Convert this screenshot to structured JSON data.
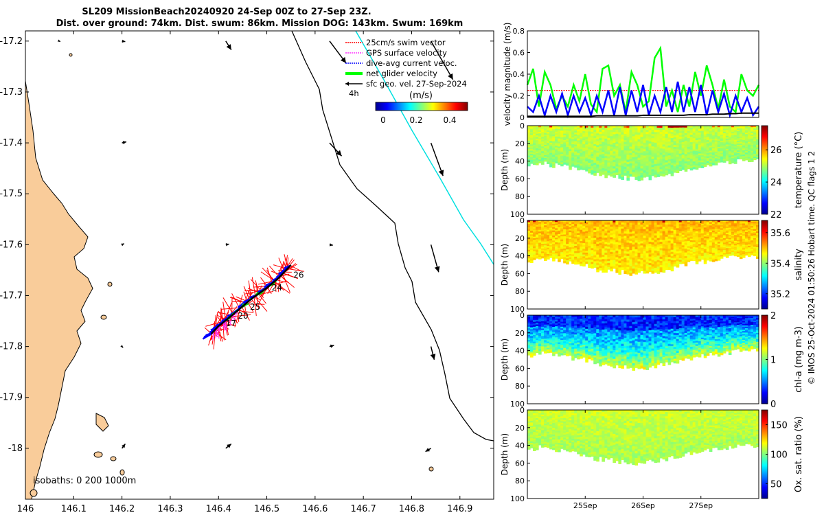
{
  "title": {
    "line1": "SL209 MissionBeach20240920 24-Sep 00Z to 27-Sep 23Z.",
    "line2": "Dist. over ground: 74km. Dist. swum: 86km. Mission DOG: 143km. Swum: 169km"
  },
  "colors": {
    "land": "#f9cc9a",
    "swim_vector": "#ff0000",
    "gps_velocity": "#ff33ff",
    "dive_avg": "#0000ff",
    "net_glider": "#00ff00",
    "sfc_geo": "#000000",
    "isobath_200": "#000000",
    "isobath_1000": "#00e0e0"
  },
  "credit": "© IMOS 25-Oct-2024 01:50:26 Hobart time. QC flags 1  2",
  "chart_data": [
    {
      "id": "map",
      "type": "scatter",
      "title": "Glider track and velocity vectors",
      "xlabel": "",
      "ylabel": "",
      "xlim": [
        146.0,
        146.97
      ],
      "ylim": [
        -18.1,
        -17.18
      ],
      "xticks": [
        146,
        146.1,
        146.2,
        146.3,
        146.4,
        146.5,
        146.6,
        146.7,
        146.8,
        146.9
      ],
      "xtick_labels": [
        "146",
        "146.1",
        "146.2",
        "146.3",
        "146.4",
        "146.5",
        "146.6",
        "146.7",
        "146.8",
        "146.9"
      ],
      "yticks": [
        -17.2,
        -17.3,
        -17.4,
        -17.5,
        -17.6,
        -17.7,
        -17.8,
        -17.9,
        -18.0
      ],
      "ytick_labels": [
        "-17.2",
        "-17.3",
        "-17.4",
        "-17.5",
        "-17.6",
        "-17.7",
        "-17.8",
        "-17.9",
        "-18"
      ],
      "legend": {
        "placement": "top-right",
        "entries": [
          {
            "label": "25cm/s swim vector",
            "color": "#ff0000",
            "style": "dotted"
          },
          {
            "label": "GPS surface velocity",
            "color": "#ff33ff",
            "style": "dotted"
          },
          {
            "label": "dive-avg current veloc.",
            "color": "#0000ff",
            "style": "dotted"
          },
          {
            "label": "net glider velocity",
            "color": "#00ff00",
            "style": "thick"
          },
          {
            "label": "sfc geo. vel. 27-Sep-2024",
            "color": "#000000",
            "style": "solid"
          }
        ],
        "time_step_label": "4h"
      },
      "colorbar": {
        "label": "(m/s)",
        "ticks": [
          "0",
          "0.2",
          "0.4"
        ],
        "range": [
          0,
          0.5
        ]
      },
      "isobath_label": "isobaths: 0   200  1000m",
      "track": {
        "lon": [
          146.385,
          146.4,
          146.42,
          146.445,
          146.47,
          146.5,
          146.525,
          146.55
        ],
        "lat": [
          -17.775,
          -17.76,
          -17.745,
          -17.725,
          -17.705,
          -17.685,
          -17.665,
          -17.64
        ]
      },
      "day_labels": [
        {
          "text": "26",
          "lon": 146.555,
          "lat": -17.665
        },
        {
          "text": "24",
          "lon": 146.51,
          "lat": -17.69
        },
        {
          "text": "25",
          "lon": 146.465,
          "lat": -17.728
        },
        {
          "text": "20",
          "lon": 146.44,
          "lat": -17.745
        },
        {
          "text": "17",
          "lon": 146.415,
          "lat": -17.76
        }
      ],
      "geo_vectors": [
        {
          "lon": 146.07,
          "lat": -17.2,
          "u": 0.01,
          "v": -0.005
        },
        {
          "lon": 146.2,
          "lat": -17.2,
          "u": 0.03,
          "v": -0.005
        },
        {
          "lon": 146.415,
          "lat": -17.2,
          "u": 0.05,
          "v": -0.08
        },
        {
          "lon": 146.63,
          "lat": -17.2,
          "u": 0.15,
          "v": -0.2
        },
        {
          "lon": 146.84,
          "lat": -17.2,
          "u": 0.2,
          "v": -0.35
        },
        {
          "lon": 146.2,
          "lat": -17.4,
          "u": 0.04,
          "v": 0.01
        },
        {
          "lon": 146.63,
          "lat": -17.4,
          "u": 0.11,
          "v": -0.12
        },
        {
          "lon": 146.84,
          "lat": -17.4,
          "u": 0.11,
          "v": -0.3
        },
        {
          "lon": 146.2,
          "lat": -17.6,
          "u": 0.02,
          "v": 0.01
        },
        {
          "lon": 146.415,
          "lat": -17.6,
          "u": 0.03,
          "v": 0.005
        },
        {
          "lon": 146.63,
          "lat": -17.6,
          "u": 0.03,
          "v": -0.005
        },
        {
          "lon": 146.84,
          "lat": -17.6,
          "u": 0.07,
          "v": -0.25
        },
        {
          "lon": 146.2,
          "lat": -17.8,
          "u": 0.01,
          "v": -0.01
        },
        {
          "lon": 146.63,
          "lat": -17.8,
          "u": 0.04,
          "v": 0.01
        },
        {
          "lon": 146.84,
          "lat": -17.8,
          "u": 0.03,
          "v": -0.12
        },
        {
          "lon": 146.2,
          "lat": -18.0,
          "u": 0.03,
          "v": 0.04
        },
        {
          "lon": 146.415,
          "lat": -18.0,
          "u": 0.05,
          "v": 0.04
        },
        {
          "lon": 146.84,
          "lat": -18.0,
          "u": -0.05,
          "v": -0.03
        }
      ]
    },
    {
      "id": "velocity",
      "type": "line",
      "title": "",
      "xlabel": "",
      "ylabel": "velocity magnitude (m/s)",
      "xlim": [
        0,
        4
      ],
      "ylim": [
        0,
        0.8
      ],
      "yticks": [
        0,
        0.2,
        0.4,
        0.6,
        0.8
      ],
      "ytick_labels": [
        "0",
        "0.2",
        "0.4",
        "0.6",
        "0.8"
      ],
      "x": [
        0,
        0.1,
        0.2,
        0.3,
        0.4,
        0.5,
        0.6,
        0.7,
        0.8,
        0.9,
        1.0,
        1.1,
        1.2,
        1.3,
        1.4,
        1.5,
        1.6,
        1.7,
        1.8,
        1.9,
        2.0,
        2.1,
        2.2,
        2.3,
        2.4,
        2.5,
        2.6,
        2.7,
        2.8,
        2.9,
        3.0,
        3.1,
        3.2,
        3.3,
        3.4,
        3.5,
        3.6,
        3.7,
        3.8,
        3.9,
        4.0
      ],
      "series": [
        {
          "name": "swim speed",
          "color": "#ff0000",
          "style": "dotted",
          "values": [
            0.25,
            0.25,
            0.25,
            0.25,
            0.25,
            0.25,
            0.25,
            0.25,
            0.25,
            0.25,
            0.25,
            0.25,
            0.25,
            0.25,
            0.25,
            0.25,
            0.25,
            0.25,
            0.25,
            0.25,
            0.25,
            0.25,
            0.25,
            0.25,
            0.25,
            0.25,
            0.25,
            0.25,
            0.25,
            0.25,
            0.25,
            0.25,
            0.25,
            0.25,
            0.25,
            0.25,
            0.25,
            0.25,
            0.25,
            0.25,
            0.25
          ]
        },
        {
          "name": "net glider velocity",
          "color": "#00ff00",
          "style": "solid",
          "values": [
            0.3,
            0.45,
            0.1,
            0.42,
            0.3,
            0.08,
            0.2,
            0.1,
            0.3,
            0.15,
            0.4,
            0.12,
            0.05,
            0.45,
            0.48,
            0.2,
            0.3,
            0.05,
            0.42,
            0.3,
            0.1,
            0.15,
            0.55,
            0.64,
            0.1,
            0.25,
            0.05,
            0.3,
            0.1,
            0.42,
            0.2,
            0.48,
            0.3,
            0.08,
            0.35,
            0.1,
            0.05,
            0.4,
            0.25,
            0.2,
            0.3
          ]
        },
        {
          "name": "dive-avg current",
          "color": "#0000ff",
          "style": "solid",
          "values": [
            0.1,
            0.05,
            0.2,
            0.02,
            0.2,
            0.05,
            0.22,
            0.02,
            0.2,
            0.05,
            0.18,
            0.02,
            0.2,
            0.05,
            0.25,
            0.02,
            0.28,
            0.02,
            0.25,
            0.05,
            0.3,
            0.02,
            0.2,
            0.05,
            0.28,
            0.05,
            0.33,
            0.05,
            0.28,
            0.05,
            0.3,
            0.02,
            0.25,
            0.05,
            0.22,
            0.02,
            0.2,
            0.05,
            0.18,
            0.02,
            0.1
          ]
        },
        {
          "name": "sfc geo. vel.",
          "color": "#000000",
          "style": "solid",
          "values": [
            0.01,
            0.01,
            0.01,
            0.01,
            0.01,
            0.01,
            0.01,
            0.01,
            0.01,
            0.01,
            0.01,
            0.01,
            0.015,
            0.015,
            0.015,
            0.015,
            0.015,
            0.015,
            0.015,
            0.015,
            0.02,
            0.02,
            0.02,
            0.02,
            0.02,
            0.02,
            0.02,
            0.02,
            0.025,
            0.025,
            0.025,
            0.025,
            0.03,
            0.03,
            0.03,
            0.035,
            0.035,
            0.04,
            0.04,
            0.04,
            0.04
          ]
        }
      ]
    },
    {
      "id": "temperature",
      "type": "heatmap",
      "xlabel": "",
      "ylabel": "Depth (m)",
      "xlim": [
        0,
        4
      ],
      "ylim": [
        0,
        100
      ],
      "yticks": [
        0,
        20,
        40,
        60,
        80,
        100
      ],
      "ytick_labels": [
        "0",
        "20",
        "40",
        "60",
        "80",
        "100"
      ],
      "colorbar": {
        "label": "temperature (°C)",
        "range": [
          22,
          27.5
        ],
        "ticks": [
          "22",
          "24",
          "26"
        ],
        "tick_values": [
          22,
          24,
          26
        ]
      },
      "bottom_depth": [
        45,
        42,
        44,
        46,
        48,
        50,
        55,
        56,
        58,
        60,
        59,
        57,
        55,
        52,
        48,
        46,
        44,
        42,
        40,
        40,
        40
      ],
      "typical_value": 25.2,
      "surface_max": 27.2
    },
    {
      "id": "salinity",
      "type": "heatmap",
      "xlabel": "",
      "ylabel": "Depth (m)",
      "xlim": [
        0,
        4
      ],
      "ylim": [
        0,
        100
      ],
      "yticks": [
        0,
        20,
        40,
        60,
        80,
        100
      ],
      "ytick_labels": [
        "0",
        "20",
        "40",
        "60",
        "80",
        "100"
      ],
      "colorbar": {
        "label": "salinity",
        "range": [
          35.1,
          35.68
        ],
        "ticks": [
          "35.2",
          "35.4",
          "35.6"
        ],
        "tick_values": [
          35.2,
          35.4,
          35.6
        ]
      },
      "bottom_depth": [
        45,
        42,
        44,
        46,
        48,
        50,
        55,
        56,
        58,
        60,
        59,
        57,
        55,
        52,
        48,
        46,
        44,
        42,
        40,
        40,
        40
      ],
      "typical_value": 35.5
    },
    {
      "id": "chla",
      "type": "heatmap",
      "xlabel": "",
      "ylabel": "Depth (m)",
      "xlim": [
        0,
        4
      ],
      "ylim": [
        0,
        100
      ],
      "yticks": [
        0,
        20,
        40,
        60,
        80,
        100
      ],
      "ytick_labels": [
        "0",
        "20",
        "40",
        "60",
        "80",
        "100"
      ],
      "colorbar": {
        "label": "chl-a (mg m-3)",
        "range": [
          0,
          2
        ],
        "ticks": [
          "0",
          "1",
          "2"
        ],
        "tick_values": [
          0,
          1,
          2
        ]
      },
      "bottom_depth": [
        45,
        42,
        44,
        46,
        48,
        50,
        55,
        56,
        58,
        60,
        59,
        57,
        55,
        52,
        48,
        46,
        44,
        42,
        40,
        40,
        40
      ],
      "typical_value": 0.4,
      "deep_value": 1.1
    },
    {
      "id": "oxygen",
      "type": "heatmap",
      "xlabel": "",
      "ylabel": "Depth (m)",
      "xlim": [
        0,
        4
      ],
      "ylim": [
        0,
        100
      ],
      "yticks": [
        0,
        20,
        40,
        60,
        80,
        100
      ],
      "ytick_labels": [
        "0",
        "20",
        "40",
        "60",
        "80",
        "100"
      ],
      "xticks": [
        1,
        2,
        3
      ],
      "xtick_labels": [
        "25Sep",
        "26Sep",
        "27Sep"
      ],
      "colorbar": {
        "label": "Ox. sat. ratio (%)",
        "range": [
          25,
          175
        ],
        "ticks": [
          "50",
          "100",
          "150"
        ],
        "tick_values": [
          50,
          100,
          150
        ]
      },
      "bottom_depth": [
        45,
        42,
        44,
        46,
        48,
        50,
        55,
        56,
        58,
        60,
        59,
        57,
        55,
        52,
        48,
        46,
        44,
        42,
        40,
        40,
        40
      ],
      "typical_value": 112
    }
  ]
}
